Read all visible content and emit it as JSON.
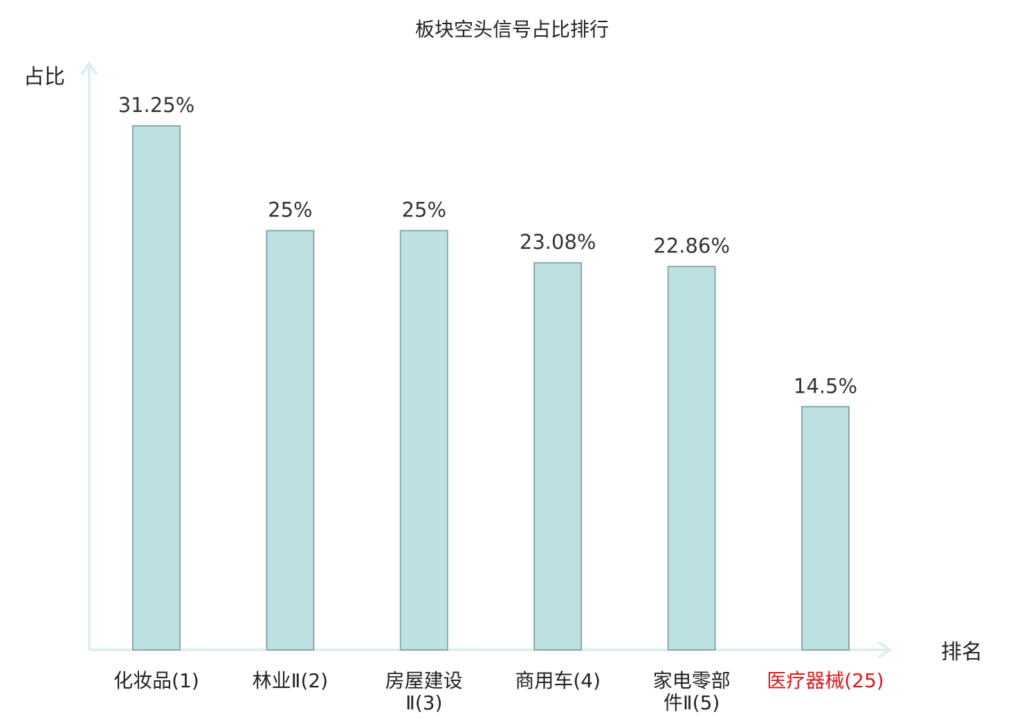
{
  "chart_data": {
    "type": "bar",
    "title": "板块空头信号占比排行",
    "ylabel": "占比",
    "xlabel": "排名",
    "categories": [
      {
        "name": "化妆品",
        "rank": "(1)",
        "lines": [
          "化妆品(1)"
        ],
        "highlight": false
      },
      {
        "name": "林业Ⅱ",
        "rank": "(2)",
        "lines": [
          "林业Ⅱ(2)"
        ],
        "highlight": false
      },
      {
        "name": "房屋建设Ⅱ",
        "rank": "(3)",
        "lines": [
          "房屋建设",
          "Ⅱ(3)"
        ],
        "highlight": false
      },
      {
        "name": "商用车",
        "rank": "(4)",
        "lines": [
          "商用车(4)"
        ],
        "highlight": false
      },
      {
        "name": "家电零部件Ⅱ",
        "rank": "(5)",
        "lines": [
          "家电零部",
          "件Ⅱ(5)"
        ],
        "highlight": false
      },
      {
        "name": "医疗器械",
        "rank": "(25)",
        "lines": [
          "医疗器械(25)"
        ],
        "highlight": true
      }
    ],
    "values": [
      31.25,
      25,
      25,
      23.08,
      22.86,
      14.5
    ],
    "value_labels": [
      "31.25%",
      "25%",
      "25%",
      "23.08%",
      "22.86%",
      "14.5%"
    ],
    "ylim": [
      0,
      35
    ],
    "grid": false,
    "legend": "none",
    "colors": {
      "bar_fill": "#bde1e3",
      "bar_stroke": "#8aa8ab",
      "axis": "#dcefee",
      "text": "#222222",
      "value_text": "#333333",
      "highlight_text": "#e0161b"
    }
  }
}
